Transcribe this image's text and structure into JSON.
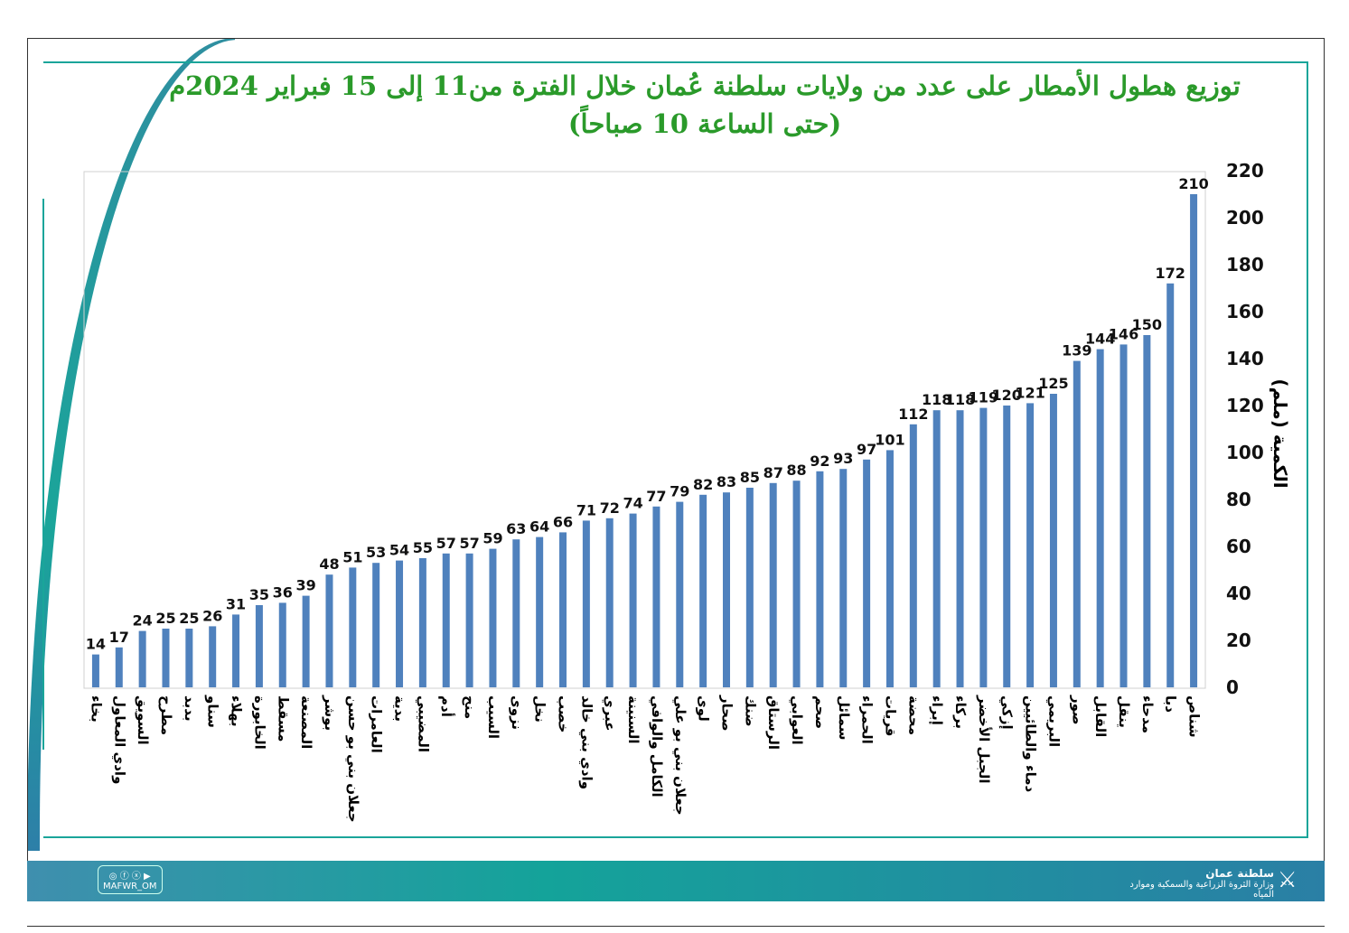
{
  "title_line1": "توزيع هطول الأمطار على عدد من ولايات سلطنة عُمان خلال الفترة من11 إلى 15 فبراير 2024م",
  "title_line2": "(حتى الساعة 10 صباحاً)",
  "footer": {
    "social_handle": "MAFWR_OM",
    "org_line1": "سلطنة عمان",
    "org_line2": "وزارة الثروة الزراعية والسمكية وموارد المياه"
  },
  "colors": {
    "bar": "#4f81bd",
    "title": "#2a9a2a",
    "accent": "#1aa59a"
  },
  "chart_data": {
    "type": "bar",
    "title": "توزيع هطول الأمطار على عدد من ولايات سلطنة عُمان خلال الفترة من11 إلى 15 فبراير 2024م",
    "ylabel": "الكمية (ملم)",
    "xlabel": "",
    "ylim": [
      0,
      220
    ],
    "yticks": [
      0,
      20,
      40,
      60,
      80,
      100,
      120,
      140,
      160,
      180,
      200,
      220
    ],
    "y_axis_side": "right",
    "grid": false,
    "categories": [
      "بخاء",
      "وادي المعاول",
      "السويق",
      "مطرح",
      "بدبد",
      "سناو",
      "بهلاء",
      "الخابورة",
      "مسقط",
      "المصنعة",
      "بوشر",
      "جعلان بني بو حسن",
      "العامرات",
      "بدية",
      "المضيبي",
      "أدم",
      "منح",
      "السيب",
      "نزوى",
      "نخل",
      "خصب",
      "وادي بني خالد",
      "عبري",
      "السنينة",
      "الكامل والوافي",
      "جعلان بني بو علي",
      "لوى",
      "صحار",
      "ضنك",
      "الرستاق",
      "العوابي",
      "صحم",
      "سمائل",
      "الحمراء",
      "قريات",
      "محضة",
      "إبراء",
      "بركاء",
      "الجبل الأخضر",
      "إزكي",
      "دماء والطائيين",
      "البريمي",
      "صور",
      "القابل",
      "ينقل",
      "مدحاء",
      "دبا",
      "شناص"
    ],
    "values": [
      14,
      17,
      24,
      25,
      25,
      26,
      31,
      35,
      36,
      39,
      48,
      51,
      53,
      54,
      55,
      57,
      57,
      59,
      63,
      64,
      66,
      71,
      72,
      74,
      77,
      79,
      82,
      83,
      85,
      87,
      88,
      92,
      93,
      97,
      101,
      112,
      118,
      118,
      119,
      120,
      121,
      125,
      139,
      144,
      146,
      150,
      172,
      210
    ]
  }
}
